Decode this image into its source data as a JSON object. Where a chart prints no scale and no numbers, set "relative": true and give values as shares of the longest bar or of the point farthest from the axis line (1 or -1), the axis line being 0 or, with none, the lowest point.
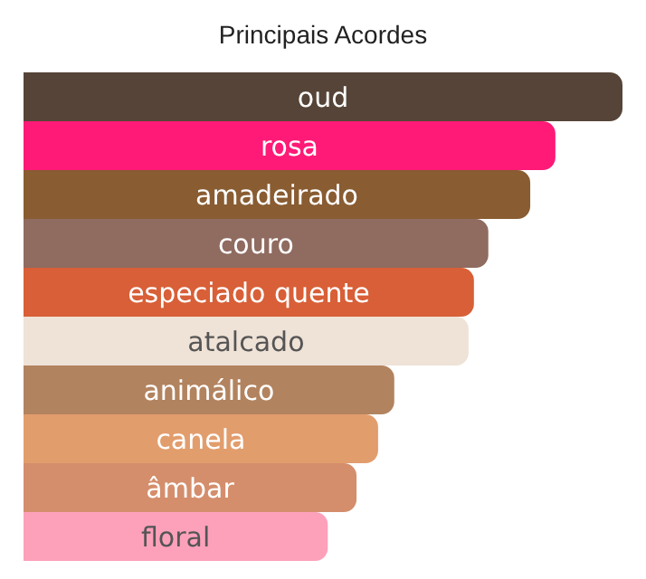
{
  "chart_data": {
    "type": "bar",
    "orientation": "horizontal",
    "relative": true,
    "title": "Principais Acordes",
    "categories": [
      "oud",
      "rosa",
      "amadeirado",
      "couro",
      "especiado quente",
      "atalcado",
      "animálico",
      "canela",
      "âmbar",
      "floral"
    ],
    "values": [
      1,
      0.888,
      0.846,
      0.776,
      0.752,
      0.743,
      0.619,
      0.592,
      0.556,
      0.508
    ],
    "colors": [
      "#554437",
      "#fe1a76",
      "#895c32",
      "#8f6b60",
      "#d85f37",
      "#efe2d6",
      "#b2835f",
      "#e29d6d",
      "#d48e6c",
      "#fda1bb"
    ],
    "grid": false,
    "legend": false
  }
}
